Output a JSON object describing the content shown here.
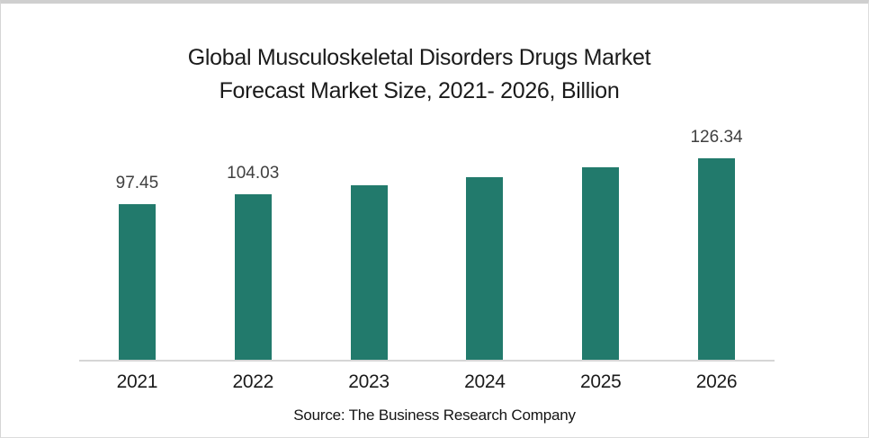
{
  "title": {
    "line1": "Global Musculoskeletal Disorders Drugs Market",
    "line2": "Forecast Market Size, 2021- 2026, Billion"
  },
  "source": "Source: The Business Research Company",
  "colors": {
    "bar": "#227A6C",
    "axis_line": "#D6D6D6",
    "title_text": "#1B1B1B",
    "data_label_text": "#404040"
  },
  "chart_data": {
    "type": "bar",
    "title": "Global Musculoskeletal Disorders Drugs Market Forecast Market Size, 2021- 2026, Billion",
    "categories": [
      "2021",
      "2022",
      "2023",
      "2024",
      "2025",
      "2026"
    ],
    "values": [
      97.45,
      104.03,
      109.23,
      114.69,
      120.42,
      126.34
    ],
    "data_labels": [
      "97.45",
      "104.03",
      "",
      "",
      "",
      "126.34"
    ],
    "values_note": "2023-2025 bars are unlabeled in the image; values estimated from bar heights (~5% CAGR)",
    "xlabel": "",
    "ylabel": "",
    "ylim": [
      0,
      150
    ],
    "grid": false,
    "legend": false,
    "value_axis_hidden": true,
    "bar_color": "#227A6C"
  }
}
